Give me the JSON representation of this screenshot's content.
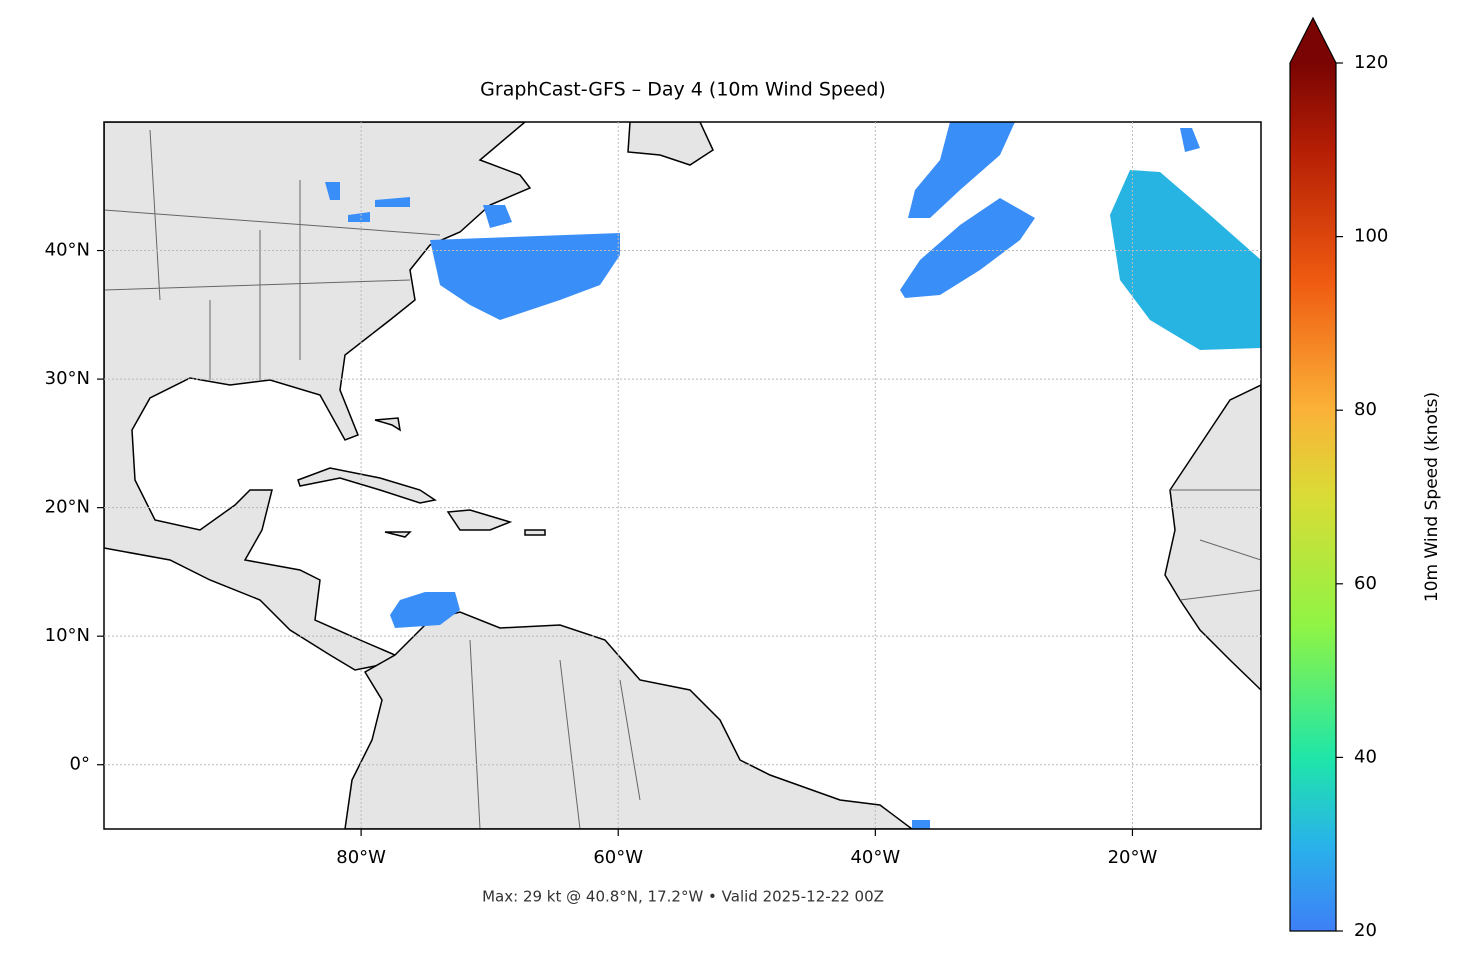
{
  "chart_data": {
    "type": "map",
    "title": "GraphCast-GFS – Day 4 (10m Wind Speed)",
    "footnote": "Max: 29 kt @ 40.8°N, 17.2°W • Valid 2025-12-22 00Z",
    "xlim": [
      -100,
      -10
    ],
    "ylim": [
      -5,
      50
    ],
    "xticks": [
      {
        "value": -80,
        "label": "80°W"
      },
      {
        "value": -60,
        "label": "60°W"
      },
      {
        "value": -40,
        "label": "40°W"
      },
      {
        "value": -20,
        "label": "20°W"
      }
    ],
    "yticks": [
      {
        "value": 0,
        "label": "0°"
      },
      {
        "value": 10,
        "label": "10°N"
      },
      {
        "value": 20,
        "label": "20°N"
      },
      {
        "value": 30,
        "label": "30°N"
      },
      {
        "value": 40,
        "label": "40°N"
      }
    ],
    "grid": true,
    "colorbar": {
      "label": "10m Wind Speed (knots)",
      "lim": [
        20,
        120
      ],
      "ticks": [
        20,
        40,
        60,
        80,
        100,
        120
      ]
    }
  }
}
